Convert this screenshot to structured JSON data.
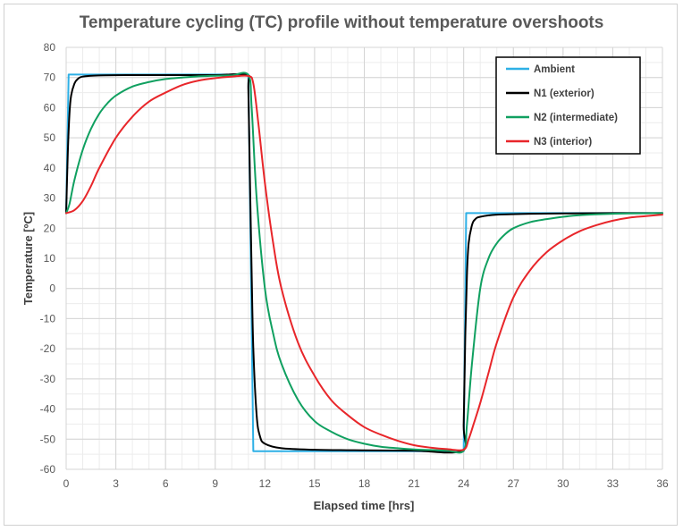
{
  "chart_data": {
    "type": "line",
    "title": "Temperature cycling (TC) profile without temperature overshoots",
    "xlabel": "Elapsed time [hrs]",
    "ylabel": "Temperature [ºC]",
    "xlim": [
      0,
      36
    ],
    "ylim": [
      -60,
      80
    ],
    "x_ticks": [
      0,
      3,
      6,
      9,
      12,
      15,
      18,
      21,
      24,
      27,
      30,
      33,
      36
    ],
    "y_ticks": [
      -60,
      -50,
      -40,
      -30,
      -20,
      -10,
      0,
      10,
      20,
      30,
      40,
      50,
      60,
      70,
      80
    ],
    "grid": true,
    "grid_minor": true,
    "legend_position": "top-right",
    "series": [
      {
        "name": "Ambient",
        "color": "#2EB0E6",
        "x": [
          0,
          0.15,
          11,
          11.3,
          24,
          24.15,
          36
        ],
        "y": [
          25,
          71,
          71,
          -54,
          -54,
          25,
          25
        ]
      },
      {
        "name": "N1 (exterior)",
        "color": "#000000",
        "x": [
          0,
          0.1,
          0.2,
          0.3,
          0.5,
          0.7,
          1,
          2,
          4,
          6,
          9,
          10.9,
          11,
          11.1,
          11.2,
          11.3,
          11.5,
          11.7,
          12,
          13,
          15,
          18,
          21,
          23.9,
          24,
          24.1,
          24.2,
          24.3,
          24.5,
          24.7,
          25,
          26,
          28,
          30,
          33,
          36
        ],
        "y": [
          25,
          45,
          58,
          64,
          68,
          69.5,
          70.3,
          70.7,
          70.8,
          70.8,
          70.8,
          70.8,
          66,
          35,
          5,
          -20,
          -42,
          -49,
          -51.5,
          -53,
          -53.5,
          -53.7,
          -53.8,
          -53.8,
          -45,
          -15,
          5,
          15,
          21,
          23,
          23.8,
          24.5,
          24.8,
          24.9,
          25,
          25
        ]
      },
      {
        "name": "N2 (intermediate)",
        "color": "#10A060",
        "x": [
          0,
          0.2,
          0.5,
          1,
          1.5,
          2,
          2.5,
          3,
          4,
          5,
          6,
          7,
          8,
          9,
          10,
          11,
          11.2,
          11.5,
          12,
          12.5,
          13,
          14,
          15,
          16,
          17,
          18,
          19,
          20,
          21,
          22,
          23,
          24,
          24.2,
          24.5,
          25,
          25.5,
          26,
          26.5,
          27,
          28,
          29,
          30,
          31,
          32,
          33,
          34,
          35,
          36
        ],
        "y": [
          25,
          28,
          36,
          46,
          53,
          58,
          61.5,
          64,
          67,
          68.5,
          69.5,
          70,
          70.4,
          70.6,
          70.7,
          70.8,
          60,
          30,
          0,
          -15,
          -25,
          -37,
          -44,
          -47.5,
          -50,
          -51.5,
          -52.5,
          -53,
          -53.4,
          -53.6,
          -53.8,
          -53.8,
          -45,
          -25,
          0,
          10,
          15,
          18,
          20,
          22,
          23,
          23.8,
          24.3,
          24.6,
          24.8,
          24.9,
          24.95,
          25
        ]
      },
      {
        "name": "N3 (interior)",
        "color": "#E8262A",
        "x": [
          0,
          0.5,
          1,
          1.5,
          2,
          3,
          4,
          5,
          6,
          7,
          8,
          9,
          10,
          11,
          11.3,
          11.6,
          12,
          12.5,
          13,
          14,
          15,
          16,
          17,
          18,
          19,
          20,
          21,
          22,
          23,
          24,
          24.3,
          24.6,
          25,
          25.5,
          26,
          27,
          28,
          29,
          30,
          31,
          32,
          33,
          34,
          35,
          36
        ],
        "y": [
          25,
          26,
          29,
          34,
          40,
          50,
          57,
          62,
          65,
          67.5,
          69,
          69.8,
          70.3,
          70.5,
          68,
          55,
          35,
          15,
          0,
          -18,
          -29,
          -37,
          -42,
          -46,
          -48.5,
          -50.5,
          -52,
          -52.8,
          -53.3,
          -53.5,
          -50,
          -45,
          -38,
          -28,
          -18,
          -3,
          6,
          12,
          16,
          19,
          21,
          22.5,
          23.5,
          24,
          24.5
        ]
      }
    ]
  }
}
